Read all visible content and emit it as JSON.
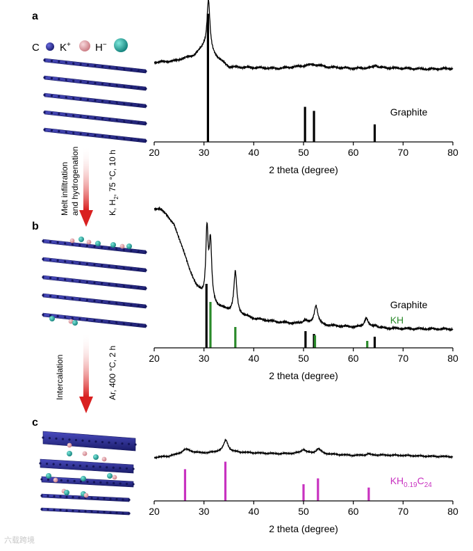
{
  "colors": {
    "carbon": "#2a2c8c",
    "carbon_dark": "#14165a",
    "potassium": "#d99aa0",
    "hydride": "#1ea59a",
    "arrow": "#d92020",
    "trace": "#000000",
    "graphite_ref": "#000000",
    "kh_ref": "#2a8a2a",
    "kh019c24_ref": "#c832c0"
  },
  "legend": {
    "carbon": "C",
    "potassium": "K",
    "potassium_sup": "+",
    "hydride": "H",
    "hydride_sup": "−"
  },
  "steps": [
    {
      "line1": "Melt infiltration",
      "line2": "and hydrogenation",
      "cond_a": "K, H",
      "cond_sub": "2",
      "cond_b": ", 75 °C, 10 h"
    },
    {
      "line1": "Intercalation",
      "cond_a": "Ar, 400 °C, 2 h"
    }
  ],
  "watermark": "六载跨境",
  "chart_data": [
    {
      "panel": "a",
      "type": "line",
      "xlabel": "2 theta (degree)",
      "xlim": [
        20,
        80
      ],
      "xticks": [
        20,
        30,
        40,
        50,
        60,
        70,
        80
      ],
      "trace": {
        "baseline": [
          [
            20,
            0.59
          ],
          [
            24,
            0.6
          ],
          [
            28,
            0.64
          ],
          [
            30,
            0.7
          ],
          [
            35,
            0.555
          ],
          [
            40,
            0.55
          ],
          [
            45,
            0.545
          ],
          [
            49,
            0.56
          ],
          [
            52,
            0.575
          ],
          [
            55,
            0.555
          ],
          [
            60,
            0.545
          ],
          [
            65,
            0.55
          ],
          [
            70,
            0.545
          ],
          [
            75,
            0.54
          ],
          [
            80,
            0.545
          ]
        ],
        "peaks": [
          {
            "pos": 30.9,
            "h": 0.38,
            "w": 0.35
          },
          {
            "pos": 64.5,
            "h": 0.02,
            "w": 0.4
          }
        ]
      },
      "references": [
        {
          "name": "Graphite",
          "color_key": "graphite_ref",
          "label_color": "#000000",
          "sticks": [
            {
              "x": 30.8,
              "h": 0.95
            },
            {
              "x": 50.3,
              "h": 0.26
            },
            {
              "x": 52.1,
              "h": 0.23
            },
            {
              "x": 64.3,
              "h": 0.13
            }
          ]
        }
      ]
    },
    {
      "panel": "b",
      "type": "line",
      "xlabel": "2 theta (degree)",
      "xlim": [
        20,
        80
      ],
      "xticks": [
        20,
        30,
        40,
        50,
        60,
        70,
        80
      ],
      "trace": {
        "baseline": [
          [
            20,
            1.0
          ],
          [
            21,
            1.0
          ],
          [
            22.5,
            0.96
          ],
          [
            24,
            0.88
          ],
          [
            25.5,
            0.74
          ],
          [
            27,
            0.57
          ],
          [
            28.5,
            0.44
          ],
          [
            30,
            0.36
          ],
          [
            31,
            0.33
          ],
          [
            33,
            0.29
          ],
          [
            36,
            0.25
          ],
          [
            40,
            0.21
          ],
          [
            45,
            0.185
          ],
          [
            50,
            0.17
          ],
          [
            55,
            0.16
          ],
          [
            60,
            0.15
          ],
          [
            65,
            0.142
          ],
          [
            70,
            0.138
          ],
          [
            80,
            0.135
          ]
        ],
        "peaks": [
          {
            "pos": 30.6,
            "h": 0.5,
            "w": 0.28
          },
          {
            "pos": 31.3,
            "h": 0.42,
            "w": 0.3
          },
          {
            "pos": 36.3,
            "h": 0.3,
            "w": 0.35
          },
          {
            "pos": 50.3,
            "h": 0.03,
            "w": 0.5
          },
          {
            "pos": 52.5,
            "h": 0.14,
            "w": 0.45
          },
          {
            "pos": 62.6,
            "h": 0.07,
            "w": 0.45
          },
          {
            "pos": 64.5,
            "h": 0.02,
            "w": 0.4
          }
        ]
      },
      "references": [
        {
          "name": "Graphite",
          "color_key": "graphite_ref",
          "label_color": "#000000",
          "sticks": [
            {
              "x": 30.5,
              "h": 0.46
            },
            {
              "x": 50.4,
              "h": 0.12
            },
            {
              "x": 52.1,
              "h": 0.1
            },
            {
              "x": 64.3,
              "h": 0.08
            }
          ]
        },
        {
          "name": "KH",
          "color_key": "kh_ref",
          "label_color": "#2a8a2a",
          "sticks": [
            {
              "x": 31.3,
              "h": 0.33
            },
            {
              "x": 36.3,
              "h": 0.15
            },
            {
              "x": 52.3,
              "h": 0.09
            },
            {
              "x": 62.8,
              "h": 0.05
            }
          ]
        }
      ]
    },
    {
      "panel": "c",
      "type": "line",
      "xlabel": "2 theta (degree)",
      "xlim": [
        20,
        80
      ],
      "xticks": [
        20,
        30,
        40,
        50,
        60,
        70,
        80
      ],
      "trace": {
        "baseline": [
          [
            20,
            0.52
          ],
          [
            23,
            0.535
          ],
          [
            25,
            0.56
          ],
          [
            27,
            0.585
          ],
          [
            29,
            0.575
          ],
          [
            31,
            0.575
          ],
          [
            33,
            0.59
          ],
          [
            36,
            0.585
          ],
          [
            40,
            0.575
          ],
          [
            45,
            0.565
          ],
          [
            50,
            0.57
          ],
          [
            55,
            0.56
          ],
          [
            60,
            0.545
          ],
          [
            65,
            0.55
          ],
          [
            70,
            0.545
          ],
          [
            75,
            0.535
          ],
          [
            80,
            0.53
          ]
        ],
        "peaks": [
          {
            "pos": 26.3,
            "h": 0.04,
            "w": 0.9
          },
          {
            "pos": 34.4,
            "h": 0.14,
            "w": 0.55
          },
          {
            "pos": 50.0,
            "h": 0.045,
            "w": 0.6
          },
          {
            "pos": 53.0,
            "h": 0.06,
            "w": 0.6
          },
          {
            "pos": 63.0,
            "h": 0.015,
            "w": 0.5
          }
        ]
      },
      "references": [
        {
          "name": "KH0.19C24",
          "label_main": "KH",
          "label_sub1": "0.19",
          "label_mid": "C",
          "label_sub2": "24",
          "color_key": "kh019c24_ref",
          "label_color": "#c832c0",
          "sticks": [
            {
              "x": 26.2,
              "h": 0.38
            },
            {
              "x": 34.3,
              "h": 0.47
            },
            {
              "x": 50.0,
              "h": 0.2
            },
            {
              "x": 52.9,
              "h": 0.27
            },
            {
              "x": 63.1,
              "h": 0.16
            }
          ]
        }
      ]
    }
  ]
}
